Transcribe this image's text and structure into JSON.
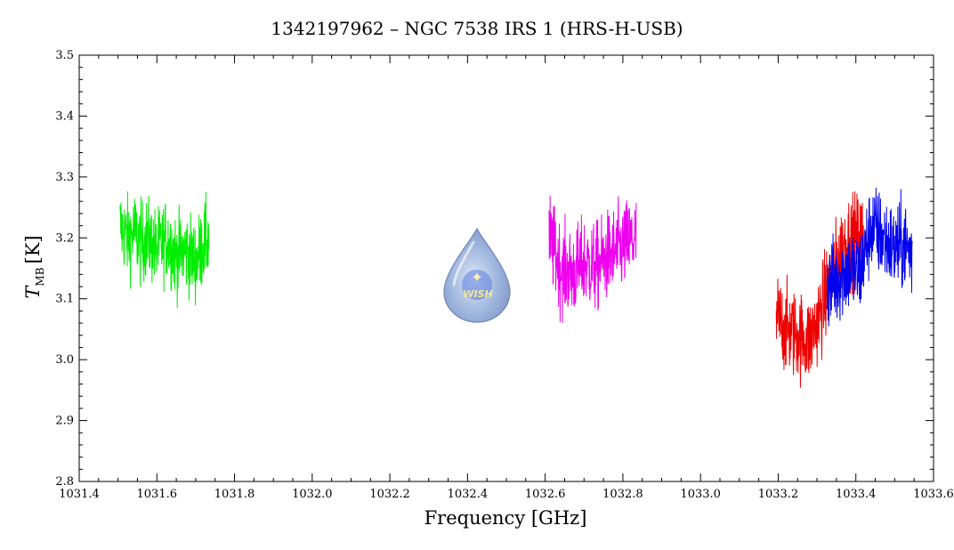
{
  "chart_data": {
    "type": "line",
    "title": "1342197962 – NGC 7538 IRS 1 (HRS-H-USB)",
    "xlabel": "Frequency [GHz]",
    "ylabel_main": "T",
    "ylabel_sub": "MB",
    "ylabel_unit": "[K]",
    "xlim": [
      1031.4,
      1033.6
    ],
    "ylim": [
      2.8,
      3.5
    ],
    "x_ticks": [
      "1031.4",
      "1031.6",
      "1031.8",
      "1032.0",
      "1032.2",
      "1032.4",
      "1032.6",
      "1032.8",
      "1033.0",
      "1033.2",
      "1033.4",
      "1033.6"
    ],
    "y_ticks": [
      "2.8",
      "2.9",
      "3.0",
      "3.1",
      "3.2",
      "3.3",
      "3.4",
      "3.5"
    ],
    "series": [
      {
        "color": "#00ee00",
        "x_range": [
          1031.505,
          1031.735
        ],
        "x": [
          1031.505,
          1031.525,
          1031.545,
          1031.555,
          1031.575,
          1031.6,
          1031.625,
          1031.65,
          1031.675,
          1031.7,
          1031.72,
          1031.735
        ],
        "y": [
          3.22,
          3.2,
          3.21,
          3.19,
          3.2,
          3.18,
          3.2,
          3.17,
          3.18,
          3.16,
          3.19,
          3.2
        ],
        "noise": 0.055
      },
      {
        "color": "#ee00ee",
        "x_range": [
          1032.61,
          1032.835
        ],
        "x": [
          1032.61,
          1032.64,
          1032.67,
          1032.7,
          1032.73,
          1032.76,
          1032.79,
          1032.81,
          1032.835
        ],
        "y": [
          3.2,
          3.15,
          3.14,
          3.16,
          3.15,
          3.17,
          3.18,
          3.19,
          3.2
        ],
        "noise": 0.06
      },
      {
        "color": "#ee0000",
        "x_range": [
          1033.195,
          1033.42
        ],
        "x": [
          1033.195,
          1033.22,
          1033.25,
          1033.28,
          1033.31,
          1033.34,
          1033.37,
          1033.4,
          1033.42
        ],
        "y": [
          3.07,
          3.05,
          3.04,
          3.03,
          3.08,
          3.14,
          3.19,
          3.2,
          3.21
        ],
        "noise": 0.06
      },
      {
        "color": "#0000ee",
        "x_range": [
          1033.325,
          1033.545
        ],
        "x": [
          1033.325,
          1033.35,
          1033.38,
          1033.41,
          1033.44,
          1033.47,
          1033.5,
          1033.525,
          1033.545
        ],
        "y": [
          3.12,
          3.13,
          3.15,
          3.14,
          3.22,
          3.2,
          3.18,
          3.19,
          3.17
        ],
        "noise": 0.06
      }
    ],
    "logo_text": "WISH"
  }
}
